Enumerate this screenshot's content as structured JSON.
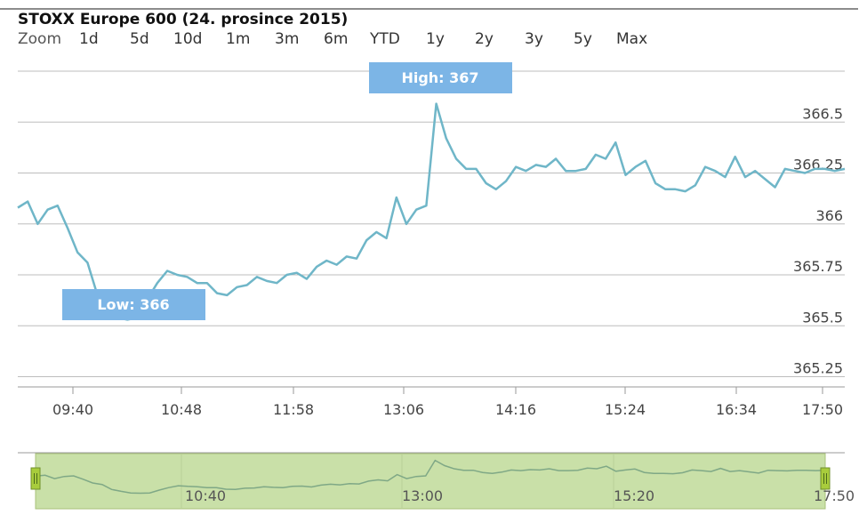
{
  "title": "STOXX Europe 600 (24. prosince 2015)",
  "zoom": {
    "label": "Zoom",
    "buttons": [
      "1d",
      "5d",
      "10d",
      "1m",
      "3m",
      "6m",
      "YTD",
      "1y",
      "2y",
      "3y",
      "5y",
      "Max"
    ]
  },
  "colors": {
    "line": "#6fb6c8",
    "grid": "#bdbdbd",
    "label_box": "#7cb5e6",
    "navigator_fill": "#c9e0a8",
    "navigator_handle": "#a8cc3c"
  },
  "annotations": {
    "high": "High: 367",
    "low": "Low: 366"
  },
  "chart_data": {
    "type": "line",
    "x_tick_labels": [
      "09:40",
      "10:48",
      "11:58",
      "13:06",
      "14:16",
      "15:24",
      "16:34",
      "17:50"
    ],
    "y_tick_labels": [
      "366.5",
      "366.25",
      "366",
      "365.75",
      "365.5",
      "365.25"
    ],
    "ylim": [
      365.2,
      366.75
    ],
    "series": [
      {
        "values": [
          366.08,
          366.11,
          366.0,
          366.07,
          366.09,
          365.98,
          365.86,
          365.81,
          365.65,
          365.59,
          365.54,
          365.53,
          365.54,
          365.63,
          365.71,
          365.77,
          365.75,
          365.74,
          365.71,
          365.71,
          365.66,
          365.65,
          365.69,
          365.7,
          365.74,
          365.72,
          365.71,
          365.75,
          365.76,
          365.73,
          365.79,
          365.82,
          365.8,
          365.84,
          365.83,
          365.92,
          365.96,
          365.93,
          366.13,
          366.0,
          366.07,
          366.09,
          366.59,
          366.42,
          366.32,
          366.27,
          366.27,
          366.2,
          366.17,
          366.21,
          366.28,
          366.26,
          366.29,
          366.28,
          366.32,
          366.26,
          366.26,
          366.27,
          366.34,
          366.32,
          366.4,
          366.24,
          366.28,
          366.31,
          366.2,
          366.17,
          366.17,
          366.16,
          366.19,
          366.28,
          366.26,
          366.23,
          366.33,
          366.23,
          366.26,
          366.22,
          366.18,
          366.27,
          366.26,
          366.25,
          366.27,
          366.27,
          366.26,
          366.27
        ]
      }
    ],
    "navigator": {
      "x_tick_labels": [
        "10:40",
        "13:00",
        "15:20",
        "17:50"
      ]
    }
  }
}
